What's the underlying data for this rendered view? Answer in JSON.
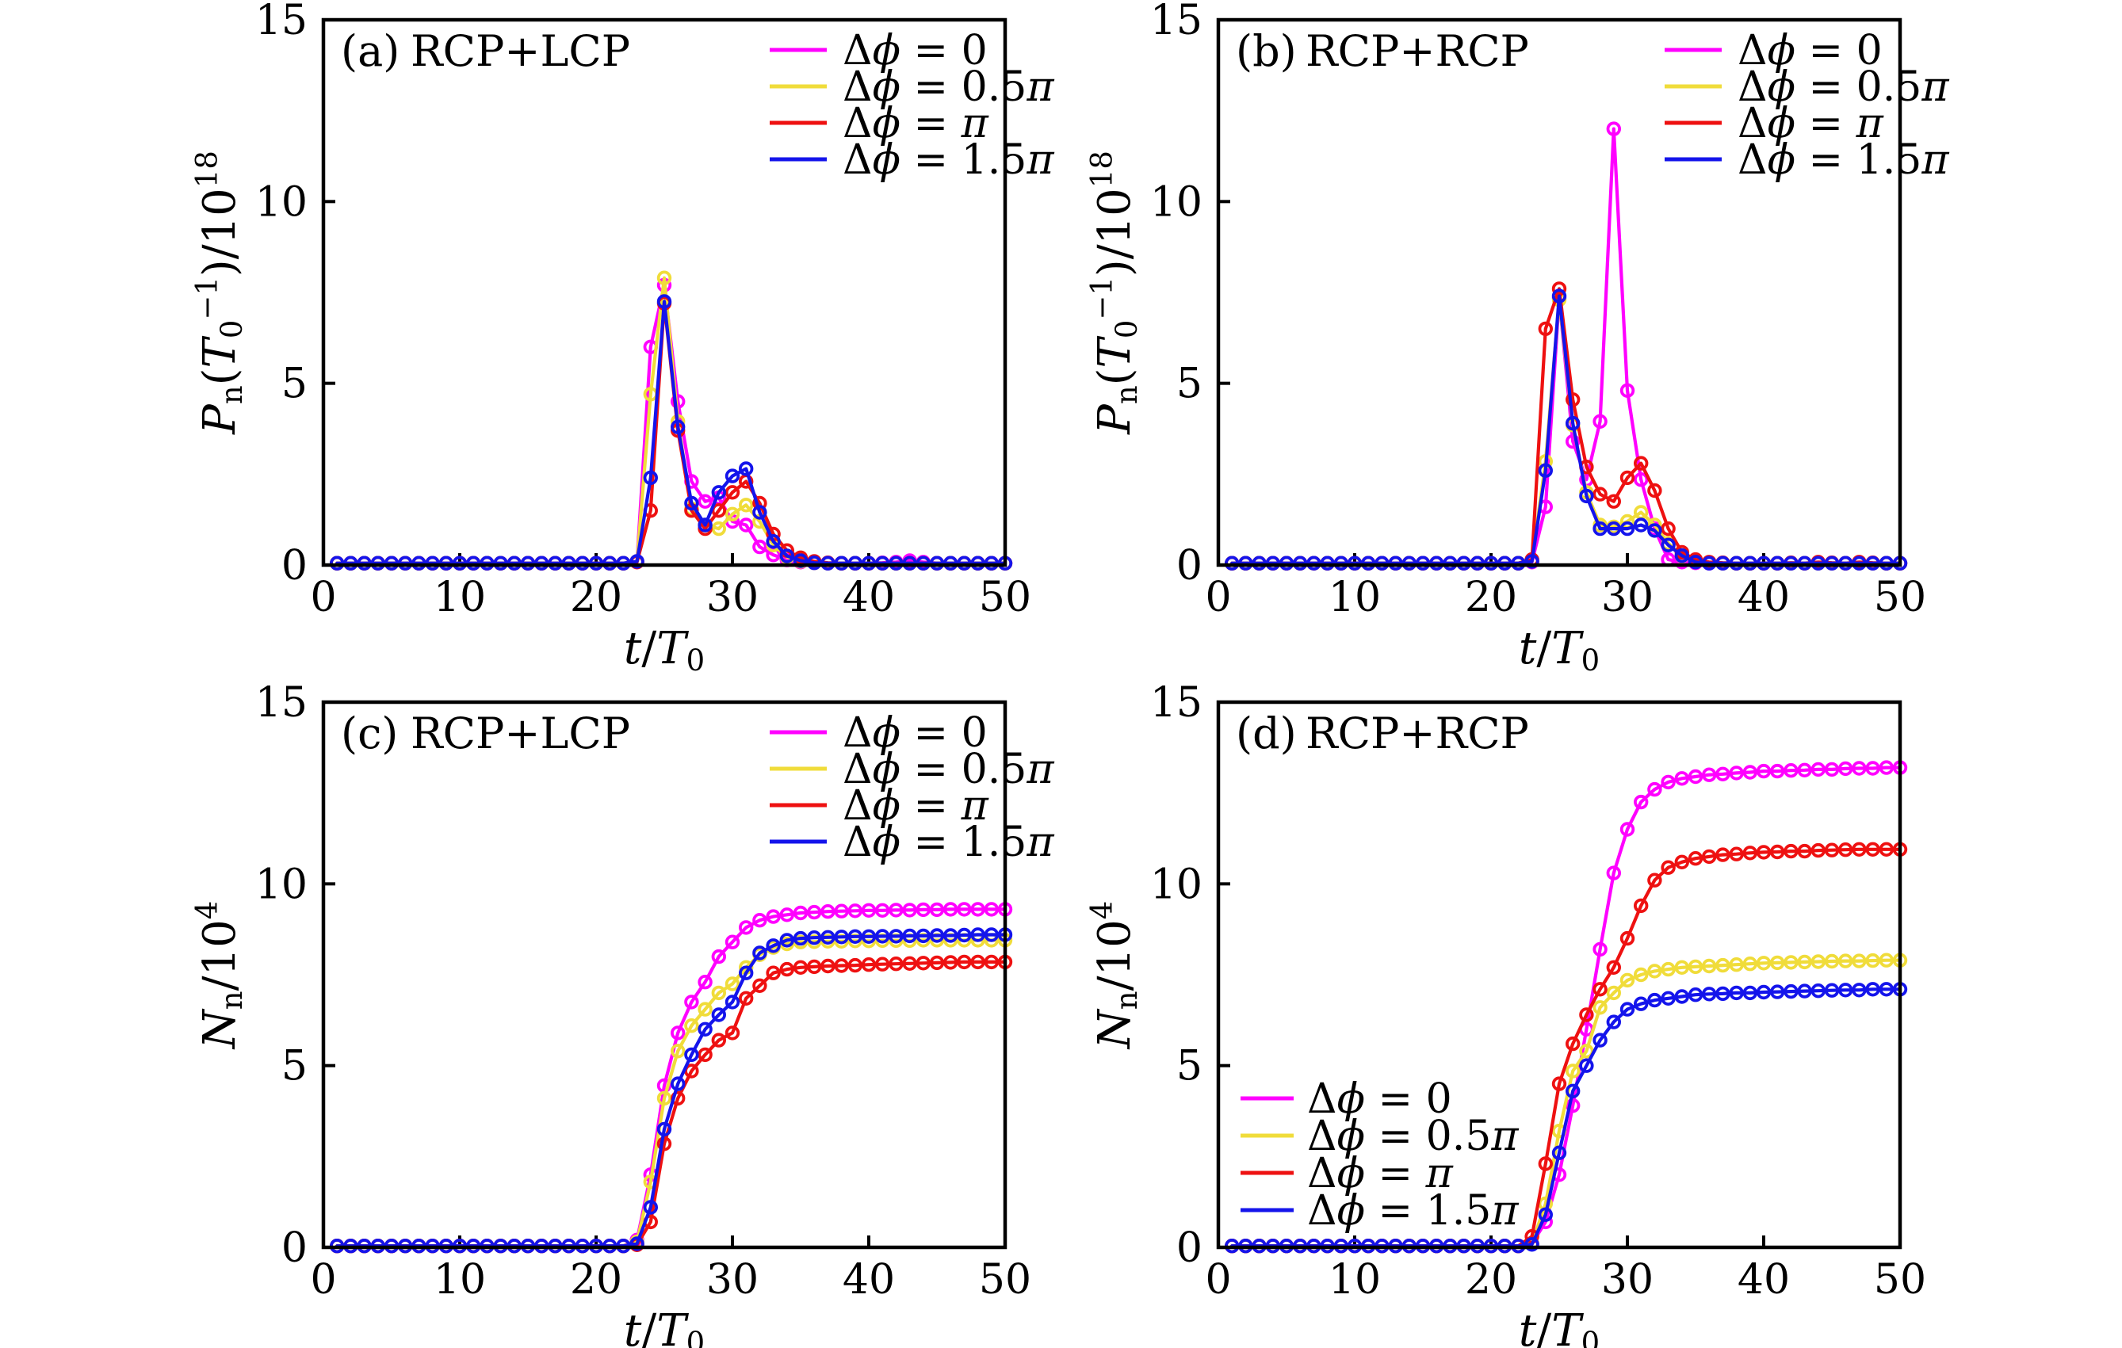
{
  "figure": {
    "background": "#ffffff",
    "frame_color": "#000000",
    "series_colors": {
      "dphi-0": "#FF00FF",
      "dphi-0.5pi": "#F0DC3A",
      "dphi-pi": "#EE1111",
      "dphi-1.5pi": "#1414EB"
    }
  },
  "chart_data": [
    {
      "id": "a",
      "type": "line",
      "title_tag": "(a)",
      "title_text": "RCP+LCP",
      "xlabel": "*t*/*T*_{0}",
      "ylabel": "*P*_{n}(*T*_{0}^{−1})/10^{18}",
      "xlim": [
        0,
        50
      ],
      "ylim": [
        0,
        15
      ],
      "xticks": [
        0,
        10,
        20,
        30,
        40,
        50
      ],
      "yticks": [
        0,
        5,
        10,
        15
      ],
      "grid": false,
      "legend_position": "top-right",
      "x_start": 1,
      "x_step": 1,
      "series": [
        {
          "name": "dphi-0",
          "label": "Δ*ϕ* = 0",
          "color": "#FF00FF",
          "values": [
            0.05,
            0.05,
            0.05,
            0.05,
            0.05,
            0.05,
            0.05,
            0.05,
            0.05,
            0.05,
            0.05,
            0.05,
            0.05,
            0.05,
            0.05,
            0.05,
            0.05,
            0.05,
            0.05,
            0.05,
            0.05,
            0.05,
            0.1,
            6.0,
            7.7,
            4.5,
            2.3,
            1.75,
            1.85,
            1.2,
            1.1,
            0.5,
            0.28,
            0.14,
            0.08,
            0.06,
            0.05,
            0.05,
            0.05,
            0.05,
            0.06,
            0.08,
            0.12,
            0.08,
            0.05,
            0.05,
            0.05,
            0.05,
            0.05,
            0.05
          ]
        },
        {
          "name": "dphi-0.5pi",
          "label": "Δ*ϕ* = 0.5*π*",
          "color": "#F0DC3A",
          "values": [
            0.05,
            0.05,
            0.05,
            0.05,
            0.05,
            0.05,
            0.05,
            0.05,
            0.05,
            0.05,
            0.05,
            0.05,
            0.05,
            0.05,
            0.05,
            0.05,
            0.05,
            0.05,
            0.05,
            0.05,
            0.05,
            0.05,
            0.1,
            4.7,
            7.9,
            3.95,
            1.55,
            1.1,
            1.0,
            1.4,
            1.65,
            1.2,
            0.55,
            0.22,
            0.1,
            0.06,
            0.05,
            0.05,
            0.05,
            0.05,
            0.05,
            0.05,
            0.05,
            0.05,
            0.05,
            0.05,
            0.05,
            0.05,
            0.05,
            0.05
          ]
        },
        {
          "name": "dphi-pi",
          "label": "Δ*ϕ* = *π*",
          "color": "#EE1111",
          "values": [
            0.05,
            0.05,
            0.05,
            0.05,
            0.05,
            0.05,
            0.05,
            0.05,
            0.05,
            0.05,
            0.05,
            0.05,
            0.05,
            0.05,
            0.05,
            0.05,
            0.05,
            0.05,
            0.05,
            0.05,
            0.05,
            0.05,
            0.08,
            1.5,
            7.2,
            3.7,
            1.5,
            1.0,
            1.5,
            2.0,
            2.3,
            1.7,
            0.85,
            0.4,
            0.2,
            0.1,
            0.06,
            0.05,
            0.05,
            0.05,
            0.05,
            0.05,
            0.05,
            0.05,
            0.05,
            0.05,
            0.05,
            0.05,
            0.05,
            0.05
          ]
        },
        {
          "name": "dphi-1.5pi",
          "label": "Δ*ϕ* = 1.5*π*",
          "color": "#1414EB",
          "values": [
            0.05,
            0.05,
            0.05,
            0.05,
            0.05,
            0.05,
            0.05,
            0.05,
            0.05,
            0.05,
            0.05,
            0.05,
            0.05,
            0.05,
            0.05,
            0.05,
            0.05,
            0.05,
            0.05,
            0.05,
            0.05,
            0.05,
            0.1,
            2.4,
            7.25,
            3.8,
            1.7,
            1.1,
            2.0,
            2.45,
            2.65,
            1.45,
            0.65,
            0.25,
            0.12,
            0.06,
            0.05,
            0.05,
            0.05,
            0.05,
            0.05,
            0.05,
            0.05,
            0.05,
            0.05,
            0.05,
            0.05,
            0.05,
            0.05,
            0.05
          ]
        }
      ]
    },
    {
      "id": "b",
      "type": "line",
      "title_tag": "(b)",
      "title_text": "RCP+RCP",
      "xlabel": "*t*/*T*_{0}",
      "ylabel": "*P*_{n}(*T*_{0}^{−1})/10^{18}",
      "xlim": [
        0,
        50
      ],
      "ylim": [
        0,
        15
      ],
      "xticks": [
        0,
        10,
        20,
        30,
        40,
        50
      ],
      "yticks": [
        0,
        5,
        10,
        15
      ],
      "grid": false,
      "legend_position": "top-right",
      "x_start": 1,
      "x_step": 1,
      "series": [
        {
          "name": "dphi-0",
          "label": "Δ*ϕ* = 0",
          "color": "#FF00FF",
          "values": [
            0.05,
            0.05,
            0.05,
            0.05,
            0.05,
            0.05,
            0.05,
            0.05,
            0.05,
            0.05,
            0.05,
            0.05,
            0.05,
            0.05,
            0.05,
            0.05,
            0.05,
            0.05,
            0.05,
            0.05,
            0.05,
            0.05,
            0.08,
            1.6,
            7.35,
            3.4,
            2.35,
            3.95,
            12.0,
            4.8,
            2.35,
            1.0,
            0.15,
            0.08,
            0.06,
            0.05,
            0.05,
            0.05,
            0.05,
            0.05,
            0.05,
            0.05,
            0.05,
            0.05,
            0.05,
            0.05,
            0.05,
            0.05,
            0.05,
            0.05
          ]
        },
        {
          "name": "dphi-0.5pi",
          "label": "Δ*ϕ* = 0.5*π*",
          "color": "#F0DC3A",
          "values": [
            0.05,
            0.05,
            0.05,
            0.05,
            0.05,
            0.05,
            0.05,
            0.05,
            0.05,
            0.05,
            0.05,
            0.05,
            0.05,
            0.05,
            0.05,
            0.05,
            0.05,
            0.05,
            0.05,
            0.05,
            0.05,
            0.05,
            0.1,
            2.85,
            7.3,
            3.85,
            2.0,
            1.1,
            1.05,
            1.2,
            1.45,
            1.1,
            0.6,
            0.25,
            0.1,
            0.06,
            0.05,
            0.05,
            0.05,
            0.05,
            0.05,
            0.05,
            0.05,
            0.05,
            0.05,
            0.05,
            0.05,
            0.05,
            0.05,
            0.05
          ]
        },
        {
          "name": "dphi-pi",
          "label": "Δ*ϕ* = *π*",
          "color": "#EE1111",
          "values": [
            0.05,
            0.05,
            0.05,
            0.05,
            0.05,
            0.05,
            0.05,
            0.05,
            0.05,
            0.05,
            0.05,
            0.05,
            0.05,
            0.05,
            0.05,
            0.05,
            0.05,
            0.05,
            0.05,
            0.05,
            0.05,
            0.05,
            0.15,
            6.5,
            7.6,
            4.55,
            2.7,
            1.95,
            1.75,
            2.4,
            2.8,
            2.05,
            1.0,
            0.35,
            0.15,
            0.08,
            0.06,
            0.05,
            0.05,
            0.05,
            0.05,
            0.06,
            0.05,
            0.08,
            0.06,
            0.05,
            0.08,
            0.06,
            0.05,
            0.05
          ]
        },
        {
          "name": "dphi-1.5pi",
          "label": "Δ*ϕ* = 1.5*π*",
          "color": "#1414EB",
          "values": [
            0.05,
            0.05,
            0.05,
            0.05,
            0.05,
            0.05,
            0.05,
            0.05,
            0.05,
            0.05,
            0.05,
            0.05,
            0.05,
            0.05,
            0.05,
            0.05,
            0.05,
            0.05,
            0.05,
            0.05,
            0.05,
            0.05,
            0.1,
            2.6,
            7.4,
            3.9,
            1.9,
            1.0,
            1.0,
            1.0,
            1.1,
            0.95,
            0.55,
            0.26,
            0.08,
            0.05,
            0.05,
            0.05,
            0.05,
            0.05,
            0.05,
            0.05,
            0.05,
            0.05,
            0.05,
            0.05,
            0.05,
            0.05,
            0.05,
            0.05
          ]
        }
      ]
    },
    {
      "id": "c",
      "type": "line",
      "title_tag": "(c)",
      "title_text": "RCP+LCP",
      "xlabel": "*t*/*T*_{0}",
      "ylabel": "*N*_{n}/10^{4}",
      "xlim": [
        0,
        50
      ],
      "ylim": [
        0,
        15
      ],
      "xticks": [
        0,
        10,
        20,
        30,
        40,
        50
      ],
      "yticks": [
        0,
        5,
        10,
        15
      ],
      "grid": false,
      "legend_position": "top-right",
      "x_start": 1,
      "x_step": 1,
      "series": [
        {
          "name": "dphi-0",
          "label": "Δ*ϕ* = 0",
          "color": "#FF00FF",
          "values": [
            0.04,
            0.04,
            0.04,
            0.04,
            0.04,
            0.04,
            0.04,
            0.04,
            0.04,
            0.04,
            0.04,
            0.04,
            0.04,
            0.04,
            0.04,
            0.04,
            0.04,
            0.04,
            0.04,
            0.04,
            0.04,
            0.04,
            0.2,
            2.0,
            4.45,
            5.9,
            6.75,
            7.3,
            8.0,
            8.4,
            8.8,
            9.0,
            9.1,
            9.15,
            9.2,
            9.22,
            9.24,
            9.25,
            9.26,
            9.27,
            9.27,
            9.28,
            9.28,
            9.29,
            9.29,
            9.3,
            9.3,
            9.3,
            9.3,
            9.3
          ]
        },
        {
          "name": "dphi-0.5pi",
          "label": "Δ*ϕ* = 0.5*π*",
          "color": "#F0DC3A",
          "values": [
            0.04,
            0.04,
            0.04,
            0.04,
            0.04,
            0.04,
            0.04,
            0.04,
            0.04,
            0.04,
            0.04,
            0.04,
            0.04,
            0.04,
            0.04,
            0.04,
            0.04,
            0.04,
            0.04,
            0.04,
            0.04,
            0.04,
            0.15,
            1.8,
            4.1,
            5.4,
            6.1,
            6.55,
            7.0,
            7.25,
            7.7,
            8.05,
            8.25,
            8.35,
            8.4,
            8.41,
            8.42,
            8.42,
            8.43,
            8.43,
            8.44,
            8.44,
            8.44,
            8.45,
            8.45,
            8.45,
            8.45,
            8.45,
            8.45,
            8.45
          ]
        },
        {
          "name": "dphi-pi",
          "label": "Δ*ϕ* = *π*",
          "color": "#EE1111",
          "values": [
            0.04,
            0.04,
            0.04,
            0.04,
            0.04,
            0.04,
            0.04,
            0.04,
            0.04,
            0.04,
            0.04,
            0.04,
            0.04,
            0.04,
            0.04,
            0.04,
            0.04,
            0.04,
            0.04,
            0.04,
            0.04,
            0.04,
            0.07,
            0.7,
            2.85,
            4.1,
            4.85,
            5.3,
            5.7,
            5.9,
            6.85,
            7.2,
            7.55,
            7.65,
            7.7,
            7.72,
            7.74,
            7.75,
            7.76,
            7.78,
            7.79,
            7.8,
            7.81,
            7.82,
            7.83,
            7.84,
            7.85,
            7.85,
            7.85,
            7.85
          ]
        },
        {
          "name": "dphi-1.5pi",
          "label": "Δ*ϕ* = 1.5*π*",
          "color": "#1414EB",
          "values": [
            0.04,
            0.04,
            0.04,
            0.04,
            0.04,
            0.04,
            0.04,
            0.04,
            0.04,
            0.04,
            0.04,
            0.04,
            0.04,
            0.04,
            0.04,
            0.04,
            0.04,
            0.04,
            0.04,
            0.04,
            0.04,
            0.04,
            0.1,
            1.1,
            3.25,
            4.5,
            5.3,
            6.0,
            6.4,
            6.75,
            7.55,
            8.1,
            8.3,
            8.45,
            8.5,
            8.52,
            8.53,
            8.54,
            8.55,
            8.55,
            8.56,
            8.56,
            8.57,
            8.57,
            8.58,
            8.58,
            8.59,
            8.6,
            8.6,
            8.6
          ]
        }
      ]
    },
    {
      "id": "d",
      "type": "line",
      "title_tag": "(d)",
      "title_text": "RCP+RCP",
      "xlabel": "*t*/*T*_{0}",
      "ylabel": "*N*_{n}/10^{4}",
      "xlim": [
        0,
        50
      ],
      "ylim": [
        0,
        15
      ],
      "xticks": [
        0,
        10,
        20,
        30,
        40,
        50
      ],
      "yticks": [
        0,
        5,
        10,
        15
      ],
      "grid": false,
      "legend_position": "bottom-left",
      "x_start": 1,
      "x_step": 1,
      "series": [
        {
          "name": "dphi-0",
          "label": "Δ*ϕ* = 0",
          "color": "#FF00FF",
          "values": [
            0.04,
            0.04,
            0.04,
            0.04,
            0.04,
            0.04,
            0.04,
            0.04,
            0.04,
            0.04,
            0.04,
            0.04,
            0.04,
            0.04,
            0.04,
            0.04,
            0.04,
            0.04,
            0.04,
            0.04,
            0.04,
            0.04,
            0.1,
            0.7,
            2.0,
            3.9,
            6.0,
            8.2,
            10.3,
            11.5,
            12.25,
            12.6,
            12.8,
            12.9,
            12.95,
            13.0,
            13.02,
            13.05,
            13.07,
            13.1,
            13.1,
            13.12,
            13.13,
            13.15,
            13.15,
            13.17,
            13.18,
            13.18,
            13.2,
            13.2
          ]
        },
        {
          "name": "dphi-0.5pi",
          "label": "Δ*ϕ* = 0.5*π*",
          "color": "#F0DC3A",
          "values": [
            0.04,
            0.04,
            0.04,
            0.04,
            0.04,
            0.04,
            0.04,
            0.04,
            0.04,
            0.04,
            0.04,
            0.04,
            0.04,
            0.04,
            0.04,
            0.04,
            0.04,
            0.04,
            0.04,
            0.04,
            0.04,
            0.04,
            0.1,
            1.2,
            3.2,
            4.85,
            5.4,
            6.6,
            7.0,
            7.35,
            7.5,
            7.6,
            7.65,
            7.7,
            7.72,
            7.74,
            7.76,
            7.78,
            7.8,
            7.82,
            7.83,
            7.84,
            7.85,
            7.86,
            7.87,
            7.88,
            7.88,
            7.89,
            7.9,
            7.9
          ]
        },
        {
          "name": "dphi-pi",
          "label": "Δ*ϕ* = *π*",
          "color": "#EE1111",
          "values": [
            0.04,
            0.04,
            0.04,
            0.04,
            0.04,
            0.04,
            0.04,
            0.04,
            0.04,
            0.04,
            0.04,
            0.04,
            0.04,
            0.04,
            0.04,
            0.04,
            0.04,
            0.04,
            0.04,
            0.04,
            0.04,
            0.04,
            0.3,
            2.3,
            4.5,
            5.6,
            6.4,
            7.1,
            7.7,
            8.5,
            9.4,
            10.1,
            10.45,
            10.6,
            10.7,
            10.75,
            10.8,
            10.82,
            10.85,
            10.87,
            10.88,
            10.9,
            10.9,
            10.92,
            10.93,
            10.94,
            10.95,
            10.95,
            10.95,
            10.95
          ]
        },
        {
          "name": "dphi-1.5pi",
          "label": "Δ*ϕ* = 1.5*π*",
          "color": "#1414EB",
          "values": [
            0.04,
            0.04,
            0.04,
            0.04,
            0.04,
            0.04,
            0.04,
            0.04,
            0.04,
            0.04,
            0.04,
            0.04,
            0.04,
            0.04,
            0.04,
            0.04,
            0.04,
            0.04,
            0.04,
            0.04,
            0.04,
            0.04,
            0.08,
            0.9,
            2.6,
            4.3,
            5.0,
            5.7,
            6.2,
            6.55,
            6.7,
            6.8,
            6.85,
            6.9,
            6.95,
            6.97,
            6.98,
            7.0,
            7.0,
            7.02,
            7.03,
            7.04,
            7.05,
            7.06,
            7.07,
            7.08,
            7.08,
            7.1,
            7.1,
            7.1
          ]
        }
      ]
    }
  ]
}
